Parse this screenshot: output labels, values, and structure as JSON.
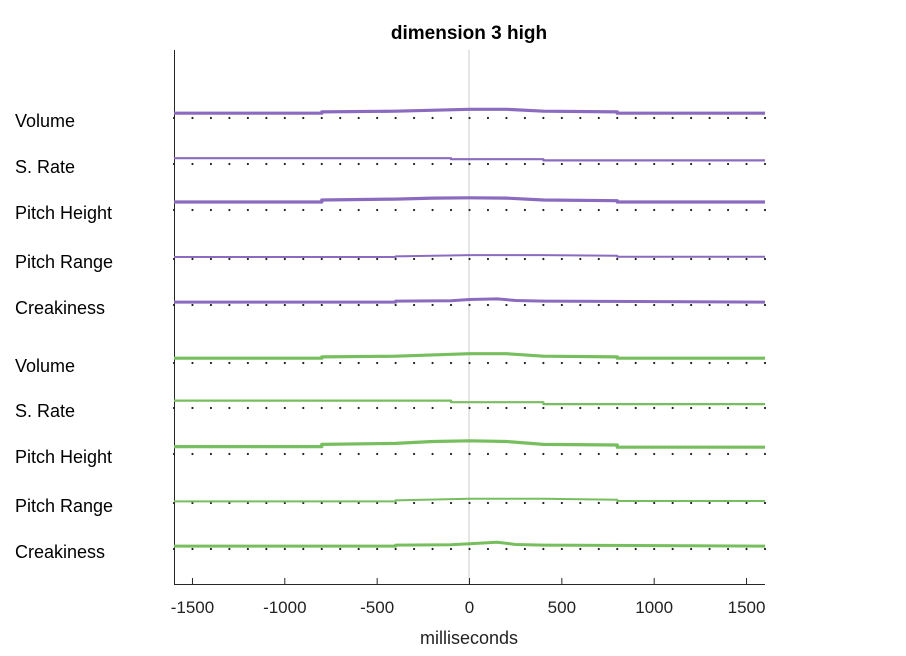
{
  "chart_data": {
    "type": "line",
    "title": "dimension  3 high",
    "xlabel": "milliseconds",
    "xlim": [
      -1600,
      1600
    ],
    "xticks": [
      -1500,
      -1000,
      -500,
      0,
      500,
      1000,
      1500
    ],
    "xtick_labels": [
      "-1500",
      "-1000",
      "-500",
      "0",
      "500",
      "1000",
      "1500"
    ],
    "center_line_at": 0,
    "grid": false,
    "legend": "none",
    "colors": {
      "purple": "#8b6bbf",
      "green": "#77bf5e",
      "center": "#cccccc",
      "axis": "#262626",
      "dots": "#222222"
    },
    "groups": [
      {
        "color": "#8b6bbf",
        "rows": [
          {
            "label": "Volume",
            "x": [
              -1600,
              -800,
              -800,
              -400,
              0,
              200,
              400,
              800,
              800,
              1600
            ],
            "y": [
              1.2,
              1.2,
              1.6,
              1.8,
              2.4,
              2.4,
              1.8,
              1.6,
              1.2,
              1.2
            ]
          },
          {
            "label": "S. Rate",
            "x": [
              -1600,
              -100,
              -100,
              400,
              400,
              1600
            ],
            "y": [
              1.5,
              1.5,
              1.2,
              1.2,
              0.8,
              0.8
            ]
          },
          {
            "label": "Pitch Height",
            "x": [
              -1600,
              -800,
              -800,
              -400,
              -200,
              0,
              200,
              400,
              800,
              800,
              1600
            ],
            "y": [
              2.2,
              2.2,
              2.8,
              3.1,
              3.4,
              3.5,
              3.4,
              2.8,
              2.6,
              2.2,
              2.2
            ]
          },
          {
            "label": "Pitch Range",
            "x": [
              -1600,
              -400,
              -400,
              0,
              400,
              800,
              800,
              1600
            ],
            "y": [
              0.3,
              0.3,
              0.5,
              0.9,
              0.9,
              0.7,
              0.4,
              0.4
            ]
          },
          {
            "label": "Creakiness",
            "x": [
              -1600,
              -400,
              -400,
              -100,
              0,
              150,
              250,
              400,
              1600
            ],
            "y": [
              0.6,
              0.6,
              0.9,
              1.0,
              1.4,
              1.6,
              1.1,
              0.9,
              0.6
            ]
          }
        ]
      },
      {
        "color": "#77bf5e",
        "rows": [
          {
            "label": "Volume",
            "x": [
              -1600,
              -800,
              -800,
              -400,
              0,
              200,
              400,
              800,
              800,
              1600
            ],
            "y": [
              1.2,
              1.2,
              1.6,
              1.8,
              2.6,
              2.6,
              1.8,
              1.6,
              1.2,
              1.2
            ]
          },
          {
            "label": "S. Rate",
            "x": [
              -1600,
              -100,
              -100,
              400,
              400,
              1600
            ],
            "y": [
              2.0,
              2.0,
              1.5,
              1.5,
              0.9,
              0.9
            ]
          },
          {
            "label": "Pitch Height",
            "x": [
              -1600,
              -800,
              -800,
              -400,
              -200,
              0,
              200,
              400,
              800,
              800,
              1600
            ],
            "y": [
              2.0,
              2.0,
              2.7,
              3.0,
              3.6,
              3.8,
              3.6,
              2.7,
              2.5,
              1.8,
              1.8
            ]
          },
          {
            "label": "Pitch Range",
            "x": [
              -1600,
              -400,
              -400,
              0,
              400,
              800,
              800,
              1600
            ],
            "y": [
              0.2,
              0.2,
              0.5,
              1.0,
              1.0,
              0.7,
              0.3,
              0.3
            ]
          },
          {
            "label": "Creakiness",
            "x": [
              -1600,
              -400,
              -400,
              -100,
              0,
              150,
              250,
              400,
              1600
            ],
            "y": [
              0.6,
              0.6,
              0.9,
              1.0,
              1.3,
              1.8,
              1.1,
              0.9,
              0.6
            ]
          }
        ]
      }
    ]
  }
}
